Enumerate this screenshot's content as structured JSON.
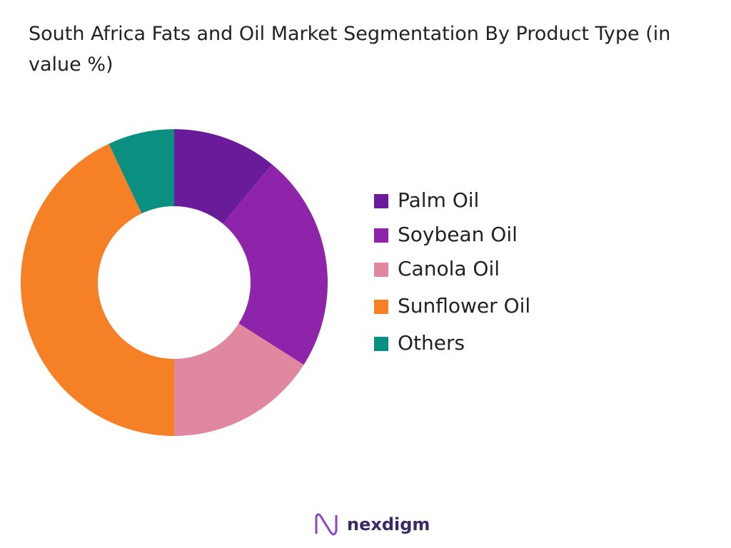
{
  "chart_data": {
    "type": "donut",
    "title": "South Africa Fats and Oil Market Segmentation By Product Type (in value %)",
    "categories": [
      "Palm Oil",
      "Soybean Oil",
      "Canola Oil",
      "Sunflower Oil",
      "Others"
    ],
    "values": [
      11,
      23,
      16,
      43,
      7
    ],
    "colors": [
      "#6a1b9a",
      "#8e24aa",
      "#e088a0",
      "#f58025",
      "#0b8f80"
    ],
    "legend": "right"
  },
  "logo": "nexdigm"
}
